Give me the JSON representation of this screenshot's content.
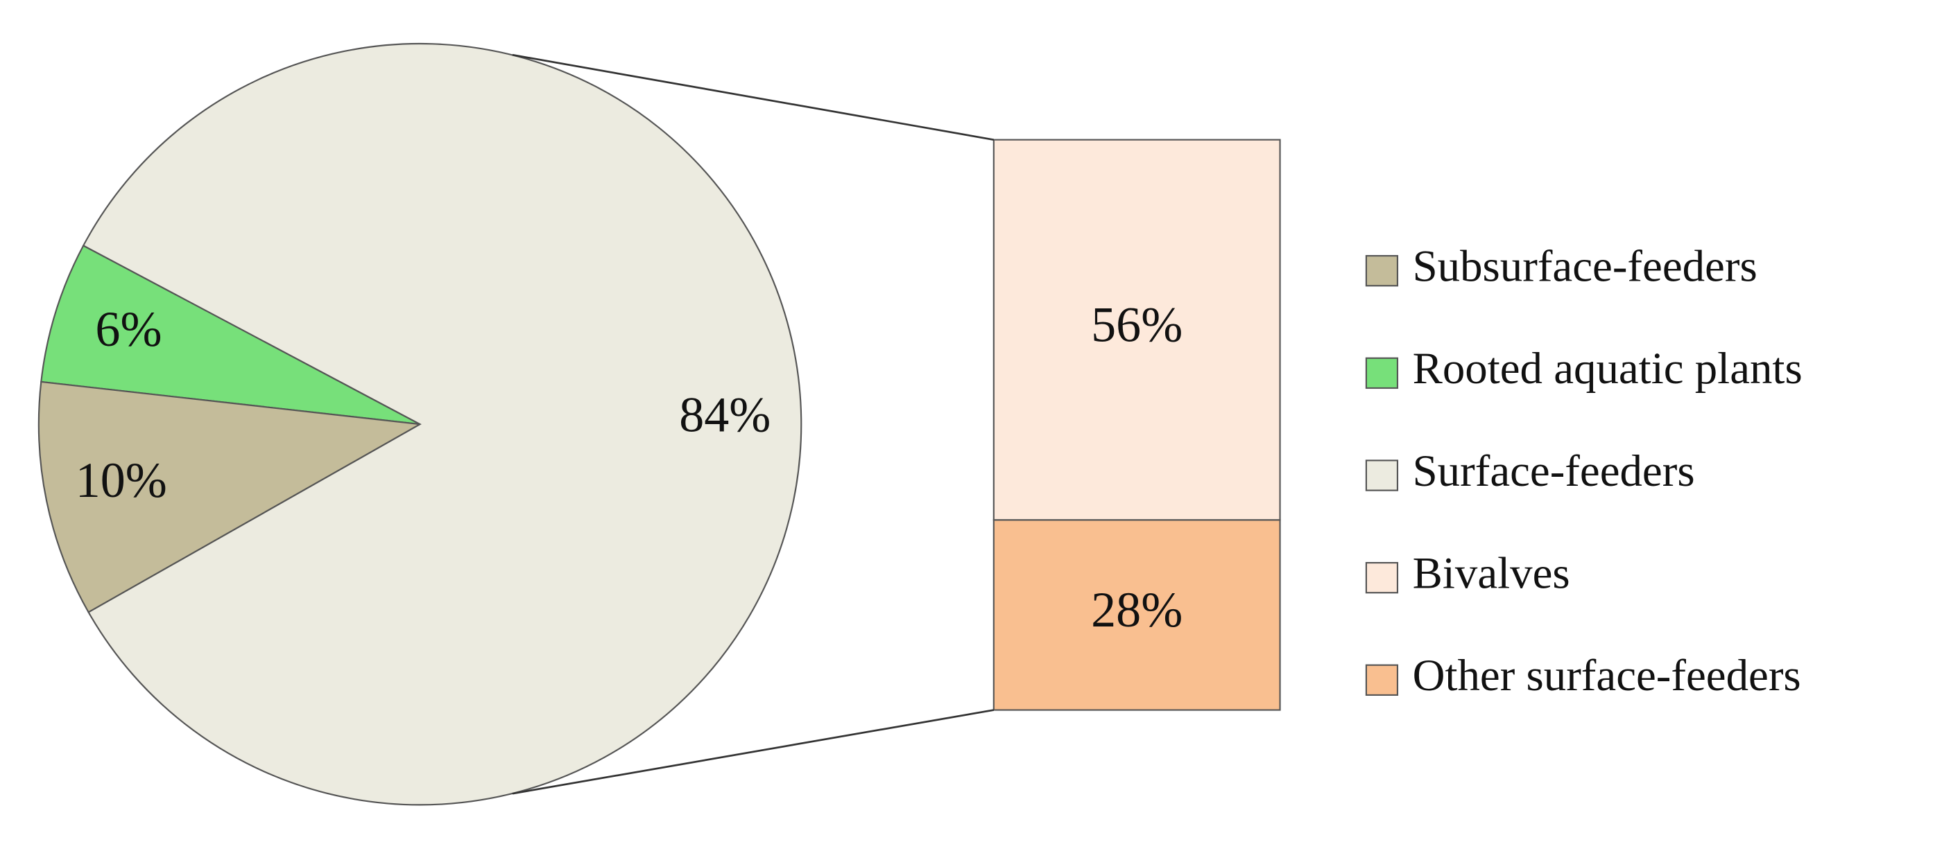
{
  "chart_data": {
    "type": "bar-of-pie",
    "pie": {
      "categories": [
        "Subsurface-feeders",
        "Rooted aquatic plants",
        "Surface-feeders"
      ],
      "values": [
        10,
        6,
        84
      ],
      "value_labels": [
        "10%",
        "6%",
        "84%"
      ],
      "colors": [
        "#c4bc9a",
        "#77e07a",
        "#ecebe0"
      ]
    },
    "bar": {
      "categories": [
        "Bivalves",
        "Other surface-feeders"
      ],
      "values": [
        56,
        28
      ],
      "value_labels": [
        "56%",
        "28%"
      ],
      "colors": [
        "#fde9db",
        "#f9bf90"
      ]
    }
  }
}
